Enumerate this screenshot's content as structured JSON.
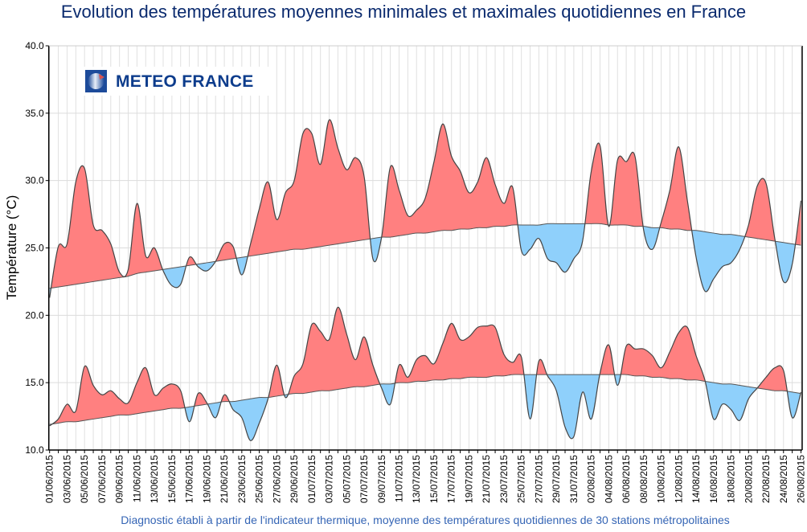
{
  "chart_data": {
    "type": "area",
    "title": "Evolution des températures moyennes minimales et maximales quotidiennes en France",
    "ylabel": "Température (°C)",
    "xlabel": "",
    "footer": "Diagnostic établi à partir de l'indicateur thermique, moyenne des températures quotidiennes de 30 stations métropolitaines",
    "logo": "METEO FRANCE",
    "ylim": [
      10,
      40
    ],
    "yticks": [
      "10.0",
      "15.0",
      "20.0",
      "25.0",
      "30.0",
      "35.0",
      "40.0"
    ],
    "grid": true,
    "colors": {
      "above_normal": "#ff8080",
      "below_normal": "#8fd0fb",
      "line": "#444444",
      "title": "#0a2a6e",
      "footer": "#3565b5",
      "logo": "#0d3c8c"
    },
    "x": [
      "01/06/2015",
      "02/06/2015",
      "03/06/2015",
      "04/06/2015",
      "05/06/2015",
      "06/06/2015",
      "07/06/2015",
      "08/06/2015",
      "09/06/2015",
      "10/06/2015",
      "11/06/2015",
      "12/06/2015",
      "13/06/2015",
      "14/06/2015",
      "15/06/2015",
      "16/06/2015",
      "17/06/2015",
      "18/06/2015",
      "19/06/2015",
      "20/06/2015",
      "21/06/2015",
      "22/06/2015",
      "23/06/2015",
      "24/06/2015",
      "25/06/2015",
      "26/06/2015",
      "27/06/2015",
      "28/06/2015",
      "29/06/2015",
      "30/06/2015",
      "01/07/2015",
      "02/07/2015",
      "03/07/2015",
      "04/07/2015",
      "05/07/2015",
      "06/07/2015",
      "07/07/2015",
      "08/07/2015",
      "09/07/2015",
      "10/07/2015",
      "11/07/2015",
      "12/07/2015",
      "13/07/2015",
      "14/07/2015",
      "15/07/2015",
      "16/07/2015",
      "17/07/2015",
      "18/07/2015",
      "19/07/2015",
      "20/07/2015",
      "21/07/2015",
      "22/07/2015",
      "23/07/2015",
      "24/07/2015",
      "25/07/2015",
      "26/07/2015",
      "27/07/2015",
      "28/07/2015",
      "29/07/2015",
      "30/07/2015",
      "31/07/2015",
      "01/08/2015",
      "02/08/2015",
      "03/08/2015",
      "04/08/2015",
      "05/08/2015",
      "06/08/2015",
      "07/08/2015",
      "08/08/2015",
      "09/08/2015",
      "10/08/2015",
      "11/08/2015",
      "12/08/2015",
      "13/08/2015",
      "14/08/2015",
      "15/08/2015",
      "16/08/2015",
      "17/08/2015",
      "18/08/2015",
      "19/08/2015",
      "20/08/2015",
      "21/08/2015",
      "22/08/2015",
      "23/08/2015",
      "24/08/2015",
      "25/08/2015",
      "26/08/2015"
    ],
    "series": [
      {
        "key": "max",
        "values": [
          21.3,
          25.1,
          25.3,
          29.9,
          30.9,
          26.7,
          26.3,
          25.3,
          23.2,
          23.4,
          28.3,
          24.4,
          25.0,
          23.3,
          22.2,
          22.3,
          24.3,
          23.6,
          23.3,
          24.0,
          25.3,
          25.1,
          23.0,
          25.3,
          27.9,
          29.9,
          27.1,
          29.1,
          30.0,
          33.5,
          33.5,
          31.2,
          34.5,
          32.4,
          30.8,
          31.7,
          30.3,
          24.2,
          25.8,
          31.0,
          29.3,
          27.4,
          27.8,
          28.7,
          31.4,
          34.2,
          31.8,
          30.7,
          29.1,
          29.9,
          31.7,
          29.7,
          28.3,
          29.5,
          24.8,
          24.9,
          25.7,
          24.2,
          23.9,
          23.2,
          24.2,
          25.5,
          30.7,
          32.6,
          26.6,
          31.5,
          31.4,
          31.8,
          26.3,
          24.9,
          26.9,
          29.3,
          32.5,
          28.5,
          24.3,
          21.8,
          22.7,
          23.6,
          23.9,
          24.9,
          26.7,
          29.6,
          29.8,
          25.7,
          22.5,
          23.8,
          28.5
        ],
        "normal": [
          22.0,
          22.1,
          22.2,
          22.3,
          22.4,
          22.5,
          22.6,
          22.7,
          22.8,
          22.9,
          23.1,
          23.2,
          23.3,
          23.4,
          23.5,
          23.6,
          23.7,
          23.8,
          23.9,
          24.0,
          24.1,
          24.2,
          24.3,
          24.4,
          24.5,
          24.6,
          24.7,
          24.8,
          24.9,
          24.9,
          25.0,
          25.1,
          25.2,
          25.3,
          25.4,
          25.5,
          25.6,
          25.7,
          25.8,
          25.8,
          25.9,
          26.0,
          26.1,
          26.1,
          26.2,
          26.3,
          26.3,
          26.4,
          26.4,
          26.5,
          26.5,
          26.6,
          26.6,
          26.7,
          26.7,
          26.7,
          26.7,
          26.8,
          26.8,
          26.8,
          26.8,
          26.8,
          26.8,
          26.8,
          26.7,
          26.7,
          26.7,
          26.6,
          26.6,
          26.5,
          26.5,
          26.4,
          26.4,
          26.3,
          26.3,
          26.2,
          26.1,
          26.0,
          26.0,
          25.9,
          25.8,
          25.7,
          25.6,
          25.5,
          25.4,
          25.3,
          25.2
        ]
      },
      {
        "key": "min",
        "values": [
          11.8,
          12.3,
          13.4,
          12.9,
          16.2,
          14.8,
          14.1,
          14.4,
          13.8,
          13.5,
          15.0,
          16.1,
          14.1,
          14.6,
          14.9,
          14.4,
          12.1,
          14.2,
          13.5,
          12.4,
          14.1,
          13.0,
          12.4,
          10.7,
          12.0,
          13.8,
          16.3,
          13.9,
          15.5,
          16.4,
          19.3,
          18.8,
          18.2,
          20.6,
          18.6,
          16.7,
          18.4,
          16.3,
          14.6,
          13.4,
          16.3,
          15.4,
          16.7,
          17.0,
          16.4,
          17.9,
          19.4,
          18.2,
          18.4,
          19.1,
          19.2,
          19.1,
          17.1,
          16.5,
          16.9,
          12.3,
          16.6,
          15.5,
          14.4,
          11.7,
          11.0,
          14.3,
          12.3,
          15.7,
          17.8,
          14.8,
          17.7,
          17.5,
          17.5,
          17.0,
          16.1,
          17.3,
          18.7,
          19.1,
          17.0,
          15.2,
          12.3,
          13.4,
          13.0,
          12.2,
          13.8,
          14.6,
          15.4,
          16.1,
          15.9,
          12.4,
          14.3
        ],
        "normal": [
          11.9,
          12.0,
          12.1,
          12.1,
          12.2,
          12.3,
          12.4,
          12.5,
          12.6,
          12.6,
          12.7,
          12.8,
          12.9,
          13.0,
          13.1,
          13.1,
          13.2,
          13.3,
          13.4,
          13.5,
          13.6,
          13.6,
          13.7,
          13.8,
          13.9,
          13.9,
          14.0,
          14.1,
          14.2,
          14.2,
          14.3,
          14.4,
          14.4,
          14.5,
          14.6,
          14.7,
          14.7,
          14.8,
          14.9,
          14.9,
          15.0,
          15.0,
          15.1,
          15.1,
          15.2,
          15.2,
          15.3,
          15.3,
          15.4,
          15.4,
          15.4,
          15.5,
          15.5,
          15.6,
          15.6,
          15.6,
          15.6,
          15.6,
          15.6,
          15.6,
          15.6,
          15.6,
          15.6,
          15.6,
          15.6,
          15.6,
          15.6,
          15.5,
          15.5,
          15.4,
          15.4,
          15.3,
          15.3,
          15.2,
          15.2,
          15.1,
          15.0,
          14.9,
          14.9,
          14.8,
          14.7,
          14.6,
          14.5,
          14.4,
          14.4,
          14.3,
          14.2
        ]
      }
    ]
  }
}
